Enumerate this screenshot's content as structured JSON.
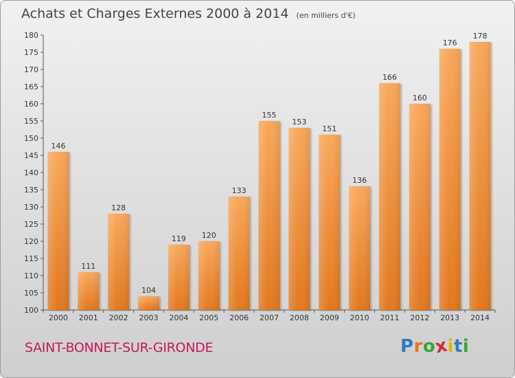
{
  "colors": {
    "bar_light": "#f9a85b",
    "bar_dark": "#e2781e",
    "commune": "#c2185b",
    "logo_letters": [
      "#2e7bc4",
      "#e2781e",
      "#3aa53a",
      "#d6283a",
      "#e5b500",
      "#2e7bc4",
      "#3aa53a"
    ]
  },
  "header": {
    "title": "Achats et Charges Externes 2000 à 2014",
    "subtitle": "(en milliers d'€)"
  },
  "footer": {
    "commune": "SAINT-BONNET-SUR-GIRONDE",
    "logo_letters": [
      "P",
      "r",
      "o",
      "x",
      "i",
      "t",
      "i"
    ]
  },
  "chart_data": {
    "type": "bar",
    "title": "Achats et Charges Externes 2000 à 2014",
    "subtitle": "(en milliers d'€)",
    "categories": [
      "2000",
      "2001",
      "2002",
      "2003",
      "2004",
      "2005",
      "2006",
      "2007",
      "2008",
      "2009",
      "2010",
      "2011",
      "2012",
      "2013",
      "2014"
    ],
    "values": [
      146,
      111,
      128,
      104,
      119,
      120,
      133,
      155,
      153,
      151,
      136,
      166,
      160,
      176,
      178
    ],
    "data_labels": [
      "146",
      "111",
      "128",
      "104",
      "119",
      "120",
      "133",
      "155",
      "153",
      "151",
      "136",
      "166",
      "160",
      "176",
      "178"
    ],
    "ylim": [
      100,
      180
    ],
    "yticks": [
      "100",
      "105",
      "110",
      "115",
      "120",
      "125",
      "130",
      "135",
      "140",
      "145",
      "150",
      "155",
      "160",
      "165",
      "170",
      "175",
      "180"
    ],
    "grid": false,
    "legend": "none"
  }
}
